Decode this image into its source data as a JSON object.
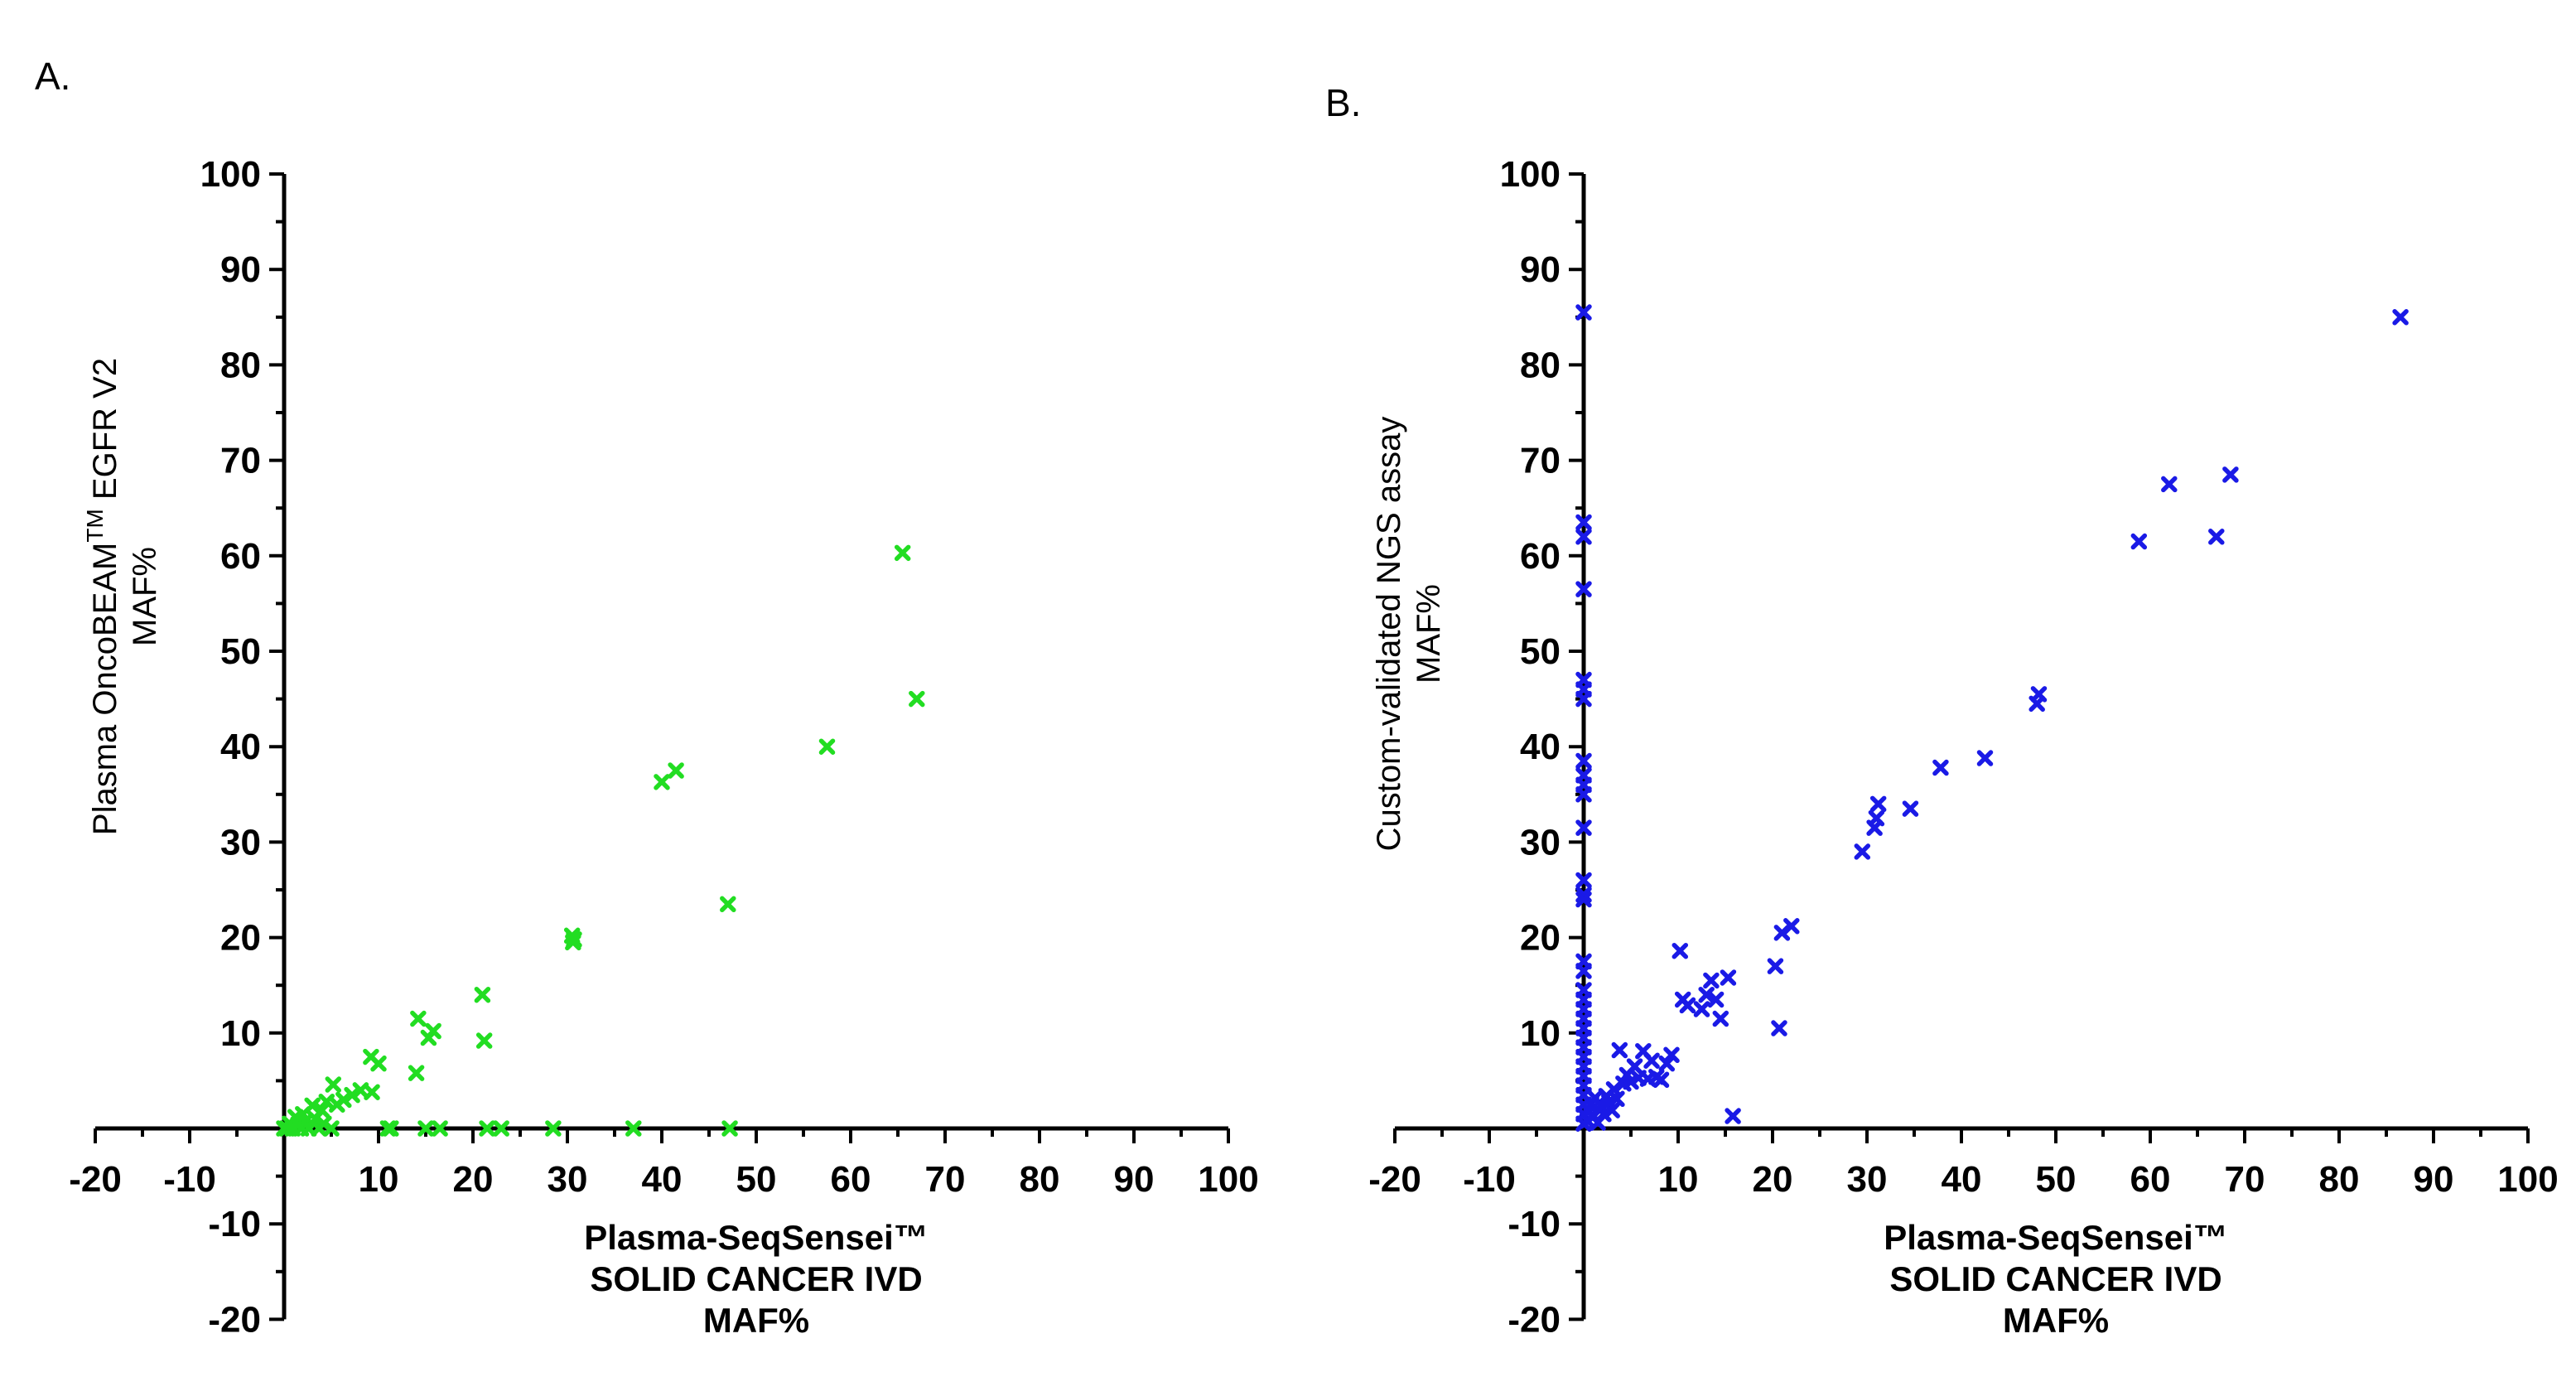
{
  "chart_data": [
    {
      "panel_label": "A.",
      "type": "scatter",
      "marker": "x",
      "color": "#22dd22",
      "xlim": [
        -20,
        100
      ],
      "ylim": [
        -20,
        100
      ],
      "x_ticks": [
        -20,
        -10,
        10,
        20,
        30,
        40,
        50,
        60,
        70,
        80,
        90,
        100
      ],
      "y_ticks": [
        -20,
        -10,
        10,
        20,
        30,
        40,
        50,
        60,
        70,
        80,
        90,
        100
      ],
      "xlabel": [
        "Plasma-SeqSensei™",
        "SOLID CANCER IVD",
        "MAF%"
      ],
      "ylabel": {
        "main": "Plasma OncoBEAM",
        "superscript": "TM",
        "rest": " EGFR V2",
        "line2": "MAF%"
      },
      "points": [
        [
          0,
          0
        ],
        [
          0.3,
          0
        ],
        [
          0.6,
          0.5
        ],
        [
          0.9,
          0
        ],
        [
          1.2,
          1.2
        ],
        [
          1.5,
          0.4
        ],
        [
          1.8,
          0
        ],
        [
          2,
          1.5
        ],
        [
          2.3,
          0.8
        ],
        [
          2.6,
          0
        ],
        [
          3,
          2.4
        ],
        [
          3.3,
          1
        ],
        [
          3.7,
          0
        ],
        [
          4,
          1.9
        ],
        [
          4.2,
          0.5
        ],
        [
          4.5,
          2.8
        ],
        [
          5,
          0
        ],
        [
          5.2,
          4.6
        ],
        [
          5.6,
          2.5
        ],
        [
          6.3,
          3
        ],
        [
          7.2,
          3.5
        ],
        [
          8.1,
          4
        ],
        [
          9.3,
          3.8
        ],
        [
          9.2,
          7.5
        ],
        [
          10,
          6.8
        ],
        [
          11,
          0
        ],
        [
          11.3,
          0
        ],
        [
          14,
          5.8
        ],
        [
          14.2,
          11.5
        ],
        [
          15,
          0
        ],
        [
          15.3,
          9.5
        ],
        [
          15.8,
          10.2
        ],
        [
          16.5,
          0
        ],
        [
          21,
          14
        ],
        [
          21.2,
          9.2
        ],
        [
          21.5,
          0
        ],
        [
          23,
          0
        ],
        [
          28.5,
          0
        ],
        [
          30.5,
          20.2
        ],
        [
          30.6,
          19.5
        ],
        [
          30.7,
          19.8
        ],
        [
          37,
          0
        ],
        [
          40,
          36.3
        ],
        [
          41.5,
          37.5
        ],
        [
          47,
          23.5
        ],
        [
          47.2,
          0
        ],
        [
          57.5,
          40
        ],
        [
          65.5,
          60.3
        ],
        [
          67,
          45
        ]
      ]
    },
    {
      "panel_label": "B.",
      "type": "scatter",
      "marker": "x",
      "color": "#1a1ae6",
      "xlim": [
        -20,
        100
      ],
      "ylim": [
        -20,
        100
      ],
      "x_ticks": [
        -20,
        -10,
        10,
        20,
        30,
        40,
        50,
        60,
        70,
        80,
        90,
        100
      ],
      "y_ticks": [
        -20,
        -10,
        10,
        20,
        30,
        40,
        50,
        60,
        70,
        80,
        90,
        100
      ],
      "xlabel": [
        "Plasma-SeqSensei™",
        "SOLID CANCER IVD",
        "MAF%"
      ],
      "ylabel": {
        "main": "Custom-validated NGS assay",
        "superscript": "",
        "rest": "",
        "line2": "MAF%"
      },
      "points": [
        [
          0,
          85.5
        ],
        [
          0,
          63.5
        ],
        [
          0,
          62
        ],
        [
          0,
          56.5
        ],
        [
          0,
          47
        ],
        [
          0,
          46
        ],
        [
          0,
          45
        ],
        [
          0,
          38.5
        ],
        [
          0,
          37
        ],
        [
          0,
          36
        ],
        [
          0,
          35
        ],
        [
          0,
          31.5
        ],
        [
          0,
          26
        ],
        [
          0,
          24.5
        ],
        [
          0,
          24
        ],
        [
          0,
          17.5
        ],
        [
          0,
          16.5
        ],
        [
          0,
          14.5
        ],
        [
          0,
          13.5
        ],
        [
          0,
          12.5
        ],
        [
          0,
          11.5
        ],
        [
          0,
          10.5
        ],
        [
          0,
          9.5
        ],
        [
          0,
          8.5
        ],
        [
          0,
          7.5
        ],
        [
          0,
          6.5
        ],
        [
          0,
          5.5
        ],
        [
          0,
          4.5
        ],
        [
          0,
          3.5
        ],
        [
          0,
          2.5
        ],
        [
          0,
          1.5
        ],
        [
          0,
          0.5
        ],
        [
          0.4,
          0.8
        ],
        [
          0.6,
          1.8
        ],
        [
          0.8,
          2.6
        ],
        [
          1,
          1.2
        ],
        [
          1.2,
          3.2
        ],
        [
          1.5,
          0.6
        ],
        [
          1.8,
          2.4
        ],
        [
          2.1,
          1.5
        ],
        [
          2.4,
          3.4
        ],
        [
          2.7,
          2.8
        ],
        [
          3,
          1.9
        ],
        [
          3.2,
          4.1
        ],
        [
          3.5,
          3.1
        ],
        [
          3.8,
          8.2
        ],
        [
          4.2,
          4.7
        ],
        [
          4.6,
          5.6
        ],
        [
          5,
          4.9
        ],
        [
          5.4,
          6.5
        ],
        [
          5.8,
          5.3
        ],
        [
          6.3,
          8.1
        ],
        [
          6.8,
          5.2
        ],
        [
          7.2,
          7.1
        ],
        [
          7.7,
          5.4
        ],
        [
          8.2,
          5.1
        ],
        [
          8.8,
          6.8
        ],
        [
          9.3,
          7.7
        ],
        [
          10.2,
          18.6
        ],
        [
          10.5,
          13.5
        ],
        [
          11,
          12.9
        ],
        [
          12.5,
          12.5
        ],
        [
          13,
          14
        ],
        [
          13.5,
          15.5
        ],
        [
          14,
          13.5
        ],
        [
          14.5,
          11.5
        ],
        [
          15.3,
          15.8
        ],
        [
          15.8,
          1.3
        ],
        [
          20.3,
          17
        ],
        [
          20.7,
          10.5
        ],
        [
          21,
          20.5
        ],
        [
          22,
          21.2
        ],
        [
          29.5,
          29
        ],
        [
          30.8,
          31.5
        ],
        [
          31,
          32.5
        ],
        [
          31.2,
          34
        ],
        [
          34.6,
          33.5
        ],
        [
          37.8,
          37.8
        ],
        [
          42.5,
          38.8
        ],
        [
          48,
          44.5
        ],
        [
          48.2,
          45.5
        ],
        [
          58.8,
          61.5
        ],
        [
          62,
          67.5
        ],
        [
          67,
          62
        ],
        [
          68.5,
          68.5
        ],
        [
          86.5,
          85
        ]
      ]
    }
  ]
}
